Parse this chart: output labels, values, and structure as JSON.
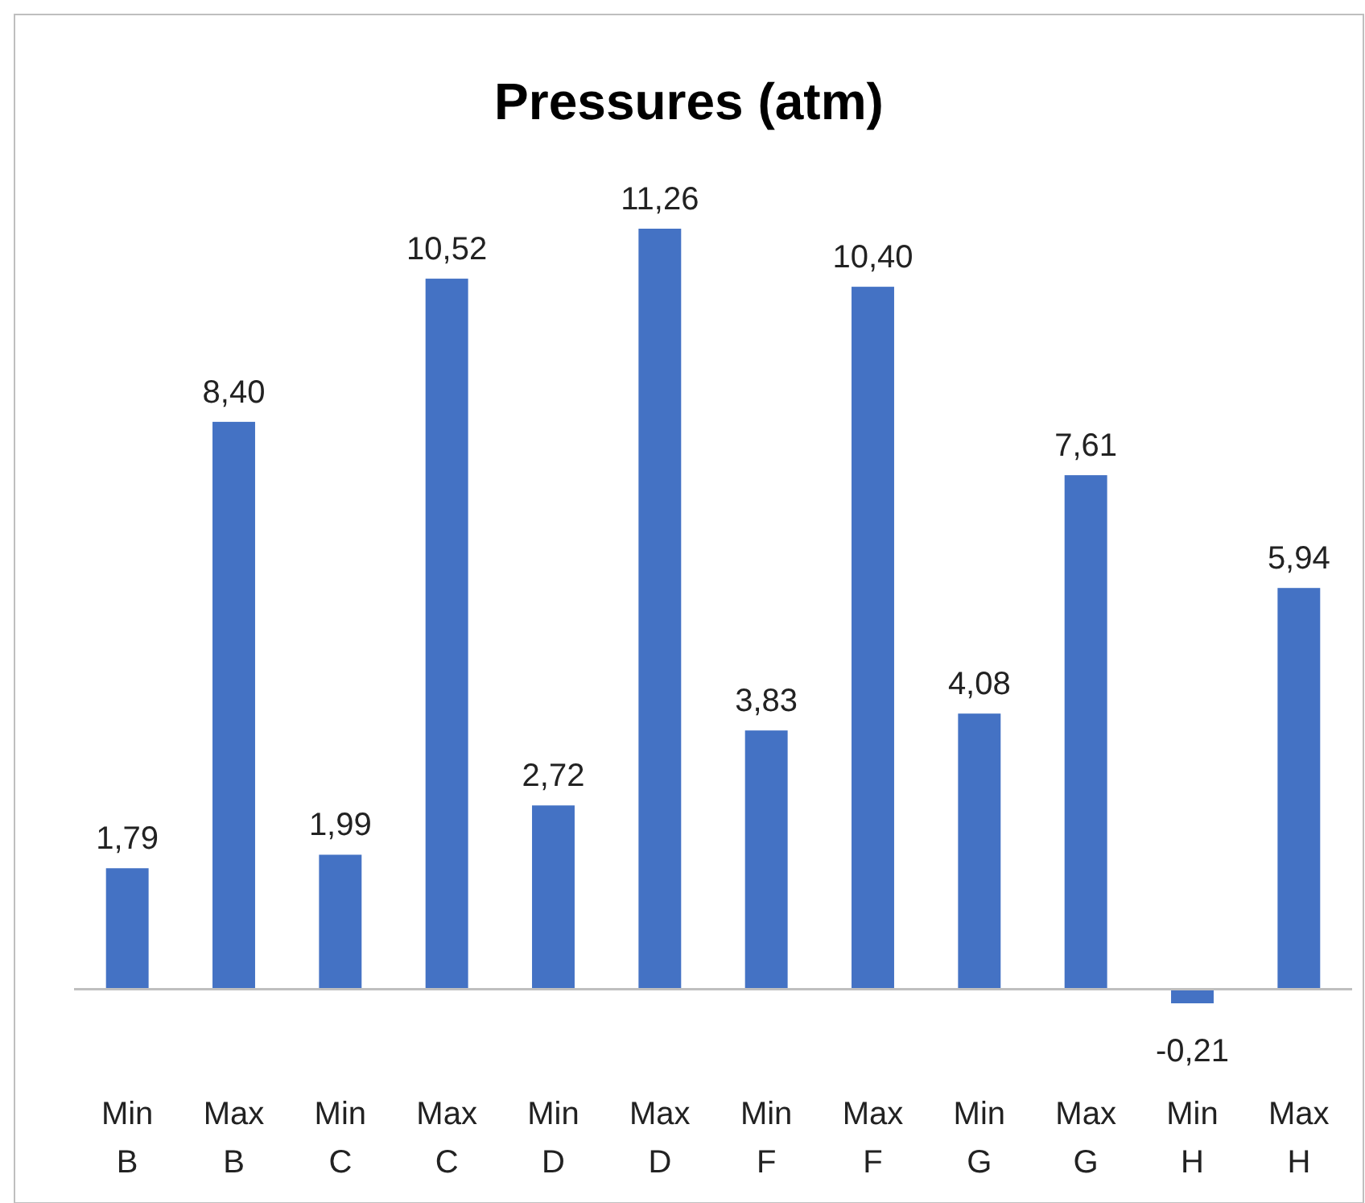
{
  "chart_data": {
    "type": "bar",
    "title": "Pressures (atm)",
    "categories": [
      "Min B",
      "Max B",
      "Min C",
      "Max C",
      "Min D",
      "Max D",
      "Min F",
      "Max F",
      "Min G",
      "Max G",
      "Min H",
      "Max H"
    ],
    "values": [
      1.79,
      8.4,
      1.99,
      10.52,
      2.72,
      11.26,
      3.83,
      10.4,
      4.08,
      7.61,
      -0.21,
      5.94
    ],
    "value_labels": [
      "1,79",
      "8,40",
      "1,99",
      "10,52",
      "2,72",
      "11,26",
      "3,83",
      "10,40",
      "4,08",
      "7,61",
      "-0,21",
      "5,94"
    ],
    "color": "#4472c4"
  }
}
